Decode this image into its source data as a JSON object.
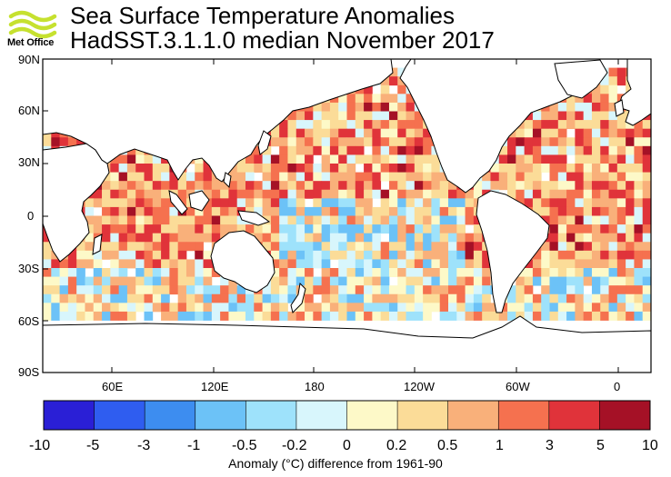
{
  "header": {
    "logo_text": "Met Office",
    "title": "Sea Surface Temperature Anomalies",
    "subtitle": "HadSST.3.1.1.0 median November 2017"
  },
  "map": {
    "lat_labels": [
      "90N",
      "60N",
      "30N",
      "0",
      "30S",
      "60S",
      "90S"
    ],
    "lon_labels": [
      "60E",
      "120E",
      "180",
      "120W",
      "60W",
      "0"
    ],
    "land_color": "#ffffff",
    "missing_color": "#ffffff"
  },
  "colorbar": {
    "labels": [
      "-10",
      "-5",
      "-3",
      "-1",
      "-0.5",
      "-0.2",
      "0",
      "0.2",
      "0.5",
      "1",
      "3",
      "5",
      "10"
    ],
    "colors": [
      "#2a1fd6",
      "#2f5df0",
      "#3d8df0",
      "#6cc2f7",
      "#9ee2fb",
      "#d8f6fc",
      "#fdf9c8",
      "#fbdc98",
      "#f9b07a",
      "#f5714f",
      "#e0333a",
      "#a51126"
    ],
    "title": "Anomaly (°C) difference from 1961-90"
  }
}
